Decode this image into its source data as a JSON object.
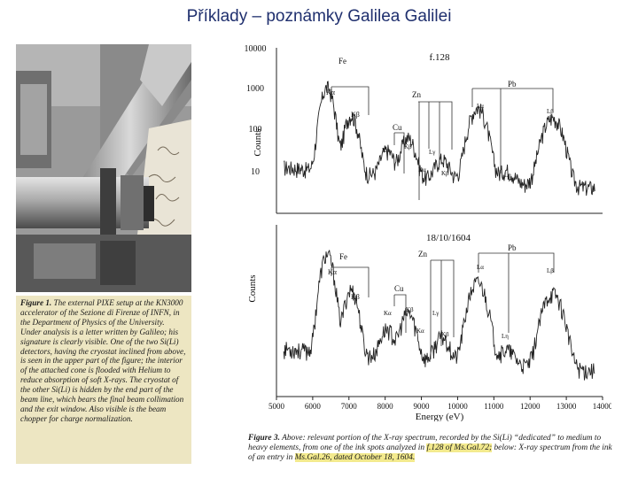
{
  "slide": {
    "title": "Příklady – poznámky Galilea Galilei"
  },
  "figure1": {
    "label": "Figure 1.",
    "text": "The external PIXE setup at the KN3000 accelerator of the Sezione di Firenze of INFN, in the Department of Physics of the University. Under analysis is a letter written by Galileo; his signature is clearly visible. One of the two Si(Li) detectors, having the cryostat inclined from above, is seen in the upper part of the figure; the interior of the attached cone is flooded with Helium to reduce absorption of soft X-rays. The cryostat of the other Si(Li) is hidden by the end part of the beam line, which bears the final beam collimation and the exit window. Also visible is the beam chopper for charge normalization."
  },
  "figure3": {
    "label": "Figure 3.",
    "text_a": "Above: relevant portion of the X-ray spectrum, recorded by the Si(Li) “dedicated” to medium to heavy elements, from one of the ink spots analyzed in",
    "ref_1": "f.128 of Ms.Gal.72;",
    "text_b": "below: X-ray spectrum from the ink of an entry in",
    "ref_2": "Ms.Gal.26, dated October 18, 1604."
  },
  "chart_data": [
    {
      "type": "line",
      "title": "f.128",
      "ylabel": "Counts",
      "yscale": "log",
      "ylim": [
        1,
        10000
      ],
      "yticks": [
        "10000",
        "1000",
        "100",
        "10"
      ],
      "xlim": [
        5000,
        14000
      ],
      "peak_labels": [
        "Fe",
        "Kα",
        "Kβ",
        "Cu",
        "Kα",
        "Kβ",
        "Zn",
        "Kα",
        "Kβ",
        "Pb",
        "Lα",
        "Lβ",
        "Lγ",
        "Lη"
      ],
      "peaks": [
        {
          "x": 6400,
          "y": 1100
        },
        {
          "x": 7060,
          "y": 230
        },
        {
          "x": 8050,
          "y": 25
        },
        {
          "x": 8630,
          "y": 60
        },
        {
          "x": 9570,
          "y": 14
        },
        {
          "x": 10550,
          "y": 350
        },
        {
          "x": 12620,
          "y": 200
        },
        {
          "x": 11350,
          "y": 6
        }
      ]
    },
    {
      "type": "line",
      "title": "18/10/1604",
      "xlabel": "Energy (eV)",
      "ylabel": "Counts",
      "xlim": [
        5000,
        14000
      ],
      "xticks": [
        "5000",
        "6000",
        "7000",
        "8000",
        "9000",
        "10000",
        "11000",
        "12000",
        "13000",
        "14000"
      ],
      "peak_labels": [
        "Fe",
        "Kα",
        "Kβ",
        "Cu",
        "Kα",
        "Kβ",
        "Zn",
        "Kα",
        "Kβ",
        "Pb",
        "Lα",
        "Lβ",
        "Lγ",
        "Lη"
      ],
      "peaks": [
        {
          "x": 6400,
          "y": 2000
        },
        {
          "x": 7060,
          "y": 300
        },
        {
          "x": 8050,
          "y": 30
        },
        {
          "x": 8630,
          "y": 80
        },
        {
          "x": 9570,
          "y": 18
        },
        {
          "x": 10550,
          "y": 450
        },
        {
          "x": 12620,
          "y": 250
        },
        {
          "x": 11350,
          "y": 7
        }
      ]
    }
  ]
}
